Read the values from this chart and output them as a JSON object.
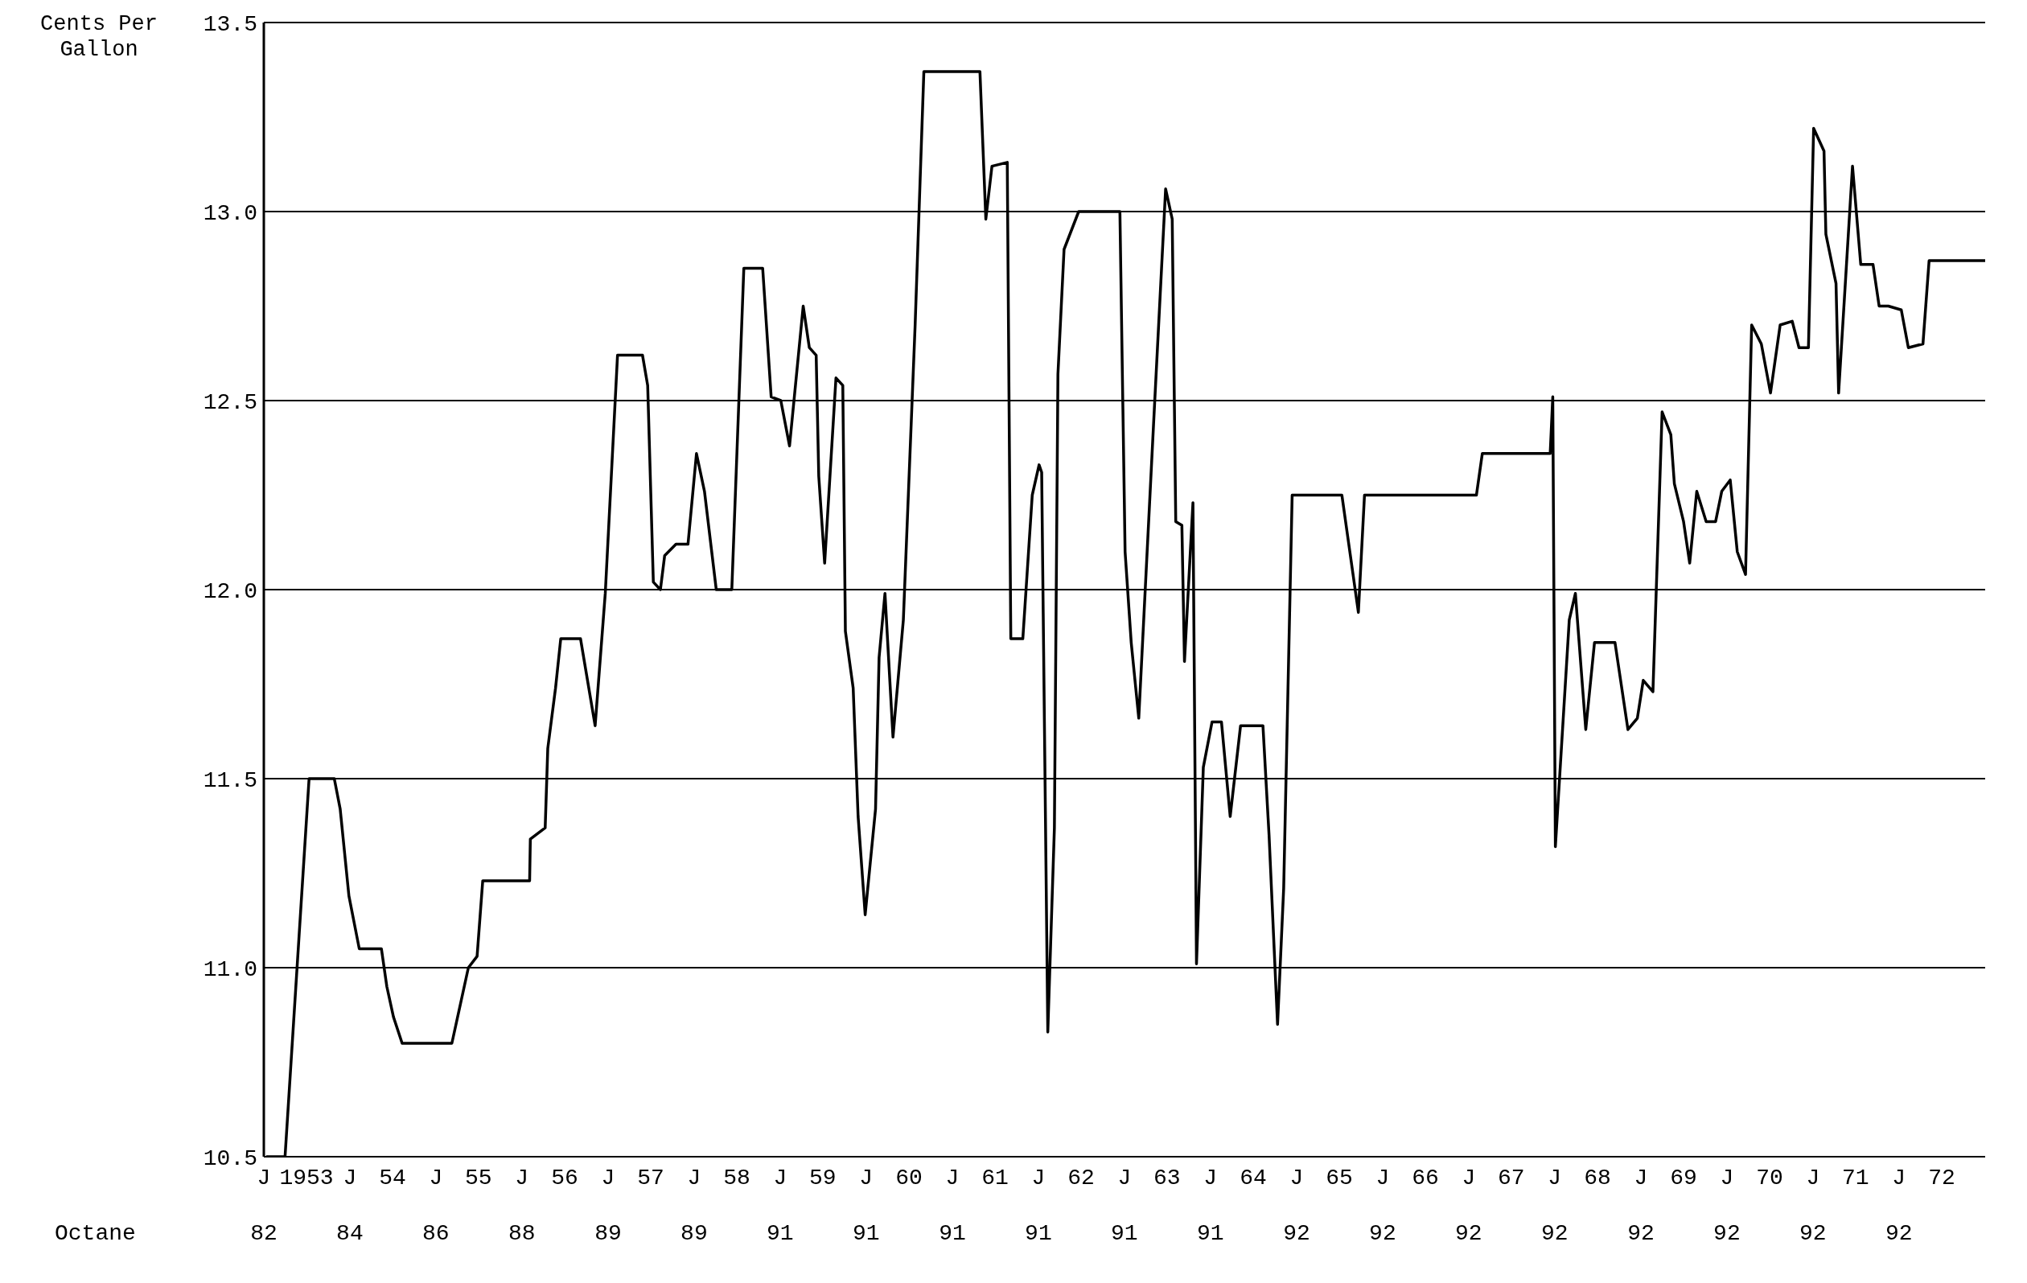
{
  "chart_data": {
    "type": "line",
    "ylabel": "Cents Per Gallon",
    "annotations": [
      "Octane",
      "82",
      "84",
      "86",
      "88",
      "89",
      "89",
      "91",
      "91",
      "91",
      "91",
      "91",
      "91",
      "92",
      "92",
      "92",
      "92",
      "92",
      "92",
      "92",
      "92"
    ],
    "x": [
      "1953-01-11",
      "1953-04-01",
      "1953-07-12",
      "1953-10-27",
      "1953-11-21",
      "1953-12-28",
      "1954-02-10",
      "1954-05-15",
      "1954-06-07",
      "1954-07-05",
      "1954-08-11",
      "1955-03-10",
      "1955-05-19",
      "1955-06-25",
      "1955-07-19",
      "1956-02-03",
      "1956-02-06",
      "1956-04-09",
      "1956-04-20",
      "1956-05-23",
      "1956-06-14",
      "1956-09-06",
      "1956-11-07",
      "1956-12-20",
      "1957-02-10",
      "1957-05-27",
      "1957-06-18",
      "1957-07-12",
      "1957-08-11",
      "1957-08-29",
      "1957-10-16",
      "1957-12-06",
      "1958-01-11",
      "1958-02-14",
      "1958-04-05",
      "1958-06-10",
      "1958-07-31",
      "1958-10-19",
      "1958-11-24",
      "1959-01-04",
      "1959-02-10",
      "1959-04-09",
      "1959-05-05",
      "1959-06-03",
      "1959-06-14",
      "1959-07-09",
      "1959-08-26",
      "1959-09-24",
      "1959-10-05",
      "1959-11-07",
      "1959-11-28",
      "1959-12-28",
      "1960-02-10",
      "1960-02-25",
      "1960-03-21",
      "1960-04-24",
      "1960-06-07",
      "1960-07-27",
      "1960-09-02",
      "1961-04-28",
      "1961-05-23",
      "1961-06-18",
      "1961-08-22",
      "1961-09-06",
      "1961-10-27",
      "1961-12-06",
      "1962-01-04",
      "1962-01-15",
      "1962-02-10",
      "1962-03-10",
      "1962-03-25",
      "1962-04-20",
      "1962-06-21",
      "1962-12-13",
      "1963-01-04",
      "1963-01-30",
      "1963-03-03",
      "1963-05-05",
      "1963-06-25",
      "1963-07-23",
      "1963-08-07",
      "1963-09-02",
      "1963-09-13",
      "1963-10-19",
      "1963-11-03",
      "1963-12-02",
      "1964-01-08",
      "1964-02-17",
      "1964-03-25",
      "1964-05-08",
      "1964-08-11",
      "1964-09-06",
      "1964-10-12",
      "1964-11-07",
      "1964-12-13",
      "1965-07-12",
      "1965-09-20",
      "1965-10-16",
      "1967-02-03",
      "1967-02-28",
      "1967-12-13",
      "1967-12-24",
      "1968-01-04",
      "1968-03-03",
      "1968-03-29",
      "1968-05-12",
      "1968-06-18",
      "1968-09-13",
      "1968-11-07",
      "1968-12-17",
      "1969-01-11",
      "1969-02-21",
      "1969-04-01",
      "1969-05-08",
      "1969-05-23",
      "1969-07-01",
      "1969-07-27",
      "1969-08-26",
      "1969-10-05",
      "1969-11-14",
      "1969-12-10",
      "1970-01-15",
      "1970-02-14",
      "1970-03-21",
      "1970-04-16",
      "1970-05-27",
      "1970-07-05",
      "1970-08-15",
      "1970-10-05",
      "1970-11-03",
      "1970-12-13",
      "1971-01-04",
      "1971-02-17",
      "1971-02-25",
      "1971-04-09",
      "1971-04-20",
      "1971-06-18",
      "1971-07-23",
      "1971-09-13",
      "1971-10-09",
      "1971-11-17",
      "1972-01-11",
      "1972-02-10",
      "1972-04-12",
      "1972-05-08",
      "1973-01-01"
    ],
    "series": [
      {
        "color": "#000000",
        "values": [
          10.5,
          10.5,
          11.5,
          11.5,
          11.42,
          11.19,
          11.05,
          11.05,
          10.95,
          10.87,
          10.8,
          10.8,
          11.0,
          11.03,
          11.23,
          11.23,
          11.34,
          11.37,
          11.58,
          11.74,
          11.87,
          11.87,
          11.64,
          11.99,
          12.62,
          12.62,
          12.54,
          12.02,
          12.0,
          12.09,
          12.12,
          12.12,
          12.36,
          12.26,
          12.0,
          12.0,
          12.85,
          12.85,
          12.51,
          12.5,
          12.38,
          12.75,
          12.64,
          12.62,
          12.3,
          12.07,
          12.56,
          12.54,
          11.89,
          11.74,
          11.4,
          11.14,
          11.42,
          11.82,
          11.99,
          11.61,
          11.92,
          12.7,
          13.37,
          13.37,
          12.98,
          13.12,
          13.13,
          11.87,
          11.87,
          12.25,
          12.33,
          12.31,
          10.83,
          11.37,
          12.57,
          12.9,
          13.0,
          13.0,
          12.1,
          11.86,
          11.66,
          12.44,
          13.06,
          12.98,
          12.18,
          12.17,
          11.81,
          12.23,
          11.01,
          11.53,
          11.65,
          11.65,
          11.4,
          11.64,
          11.64,
          11.35,
          10.85,
          11.21,
          12.25,
          12.25,
          11.94,
          12.25,
          12.25,
          12.36,
          12.36,
          12.51,
          11.32,
          11.92,
          11.99,
          11.63,
          11.86,
          11.86,
          11.63,
          11.66,
          11.76,
          11.73,
          12.47,
          12.41,
          12.28,
          12.18,
          12.07,
          12.26,
          12.18,
          12.18,
          12.26,
          12.29,
          12.1,
          12.04,
          12.7,
          12.65,
          12.52,
          12.7,
          12.71,
          12.64,
          12.64,
          13.22,
          13.16,
          12.94,
          12.81,
          12.52,
          13.12,
          12.86,
          12.86,
          12.75,
          12.75,
          12.74,
          12.64,
          12.65,
          12.87,
          12.87
        ]
      }
    ],
    "xlim": [
      "1953-01",
      "1973-01"
    ],
    "xticks": [
      {
        "value": "1953-01",
        "label": "J"
      },
      {
        "value": "1953-07",
        "label": "1953"
      },
      {
        "value": "1954-01",
        "label": "J"
      },
      {
        "value": "1954-07",
        "label": "54"
      },
      {
        "value": "1955-01",
        "label": "J"
      },
      {
        "value": "1955-07",
        "label": "55"
      },
      {
        "value": "1956-01",
        "label": "J"
      },
      {
        "value": "1956-07",
        "label": "56"
      },
      {
        "value": "1957-01",
        "label": "J"
      },
      {
        "value": "1957-07",
        "label": "57"
      },
      {
        "value": "1958-01",
        "label": "J"
      },
      {
        "value": "1958-07",
        "label": "58"
      },
      {
        "value": "1959-01",
        "label": "J"
      },
      {
        "value": "1959-07",
        "label": "59"
      },
      {
        "value": "1960-01",
        "label": "J"
      },
      {
        "value": "1960-07",
        "label": "60"
      },
      {
        "value": "1961-01",
        "label": "J"
      },
      {
        "value": "1961-07",
        "label": "61"
      },
      {
        "value": "1962-01",
        "label": "J"
      },
      {
        "value": "1962-07",
        "label": "62"
      },
      {
        "value": "1963-01",
        "label": "J"
      },
      {
        "value": "1963-07",
        "label": "63"
      },
      {
        "value": "1964-01",
        "label": "J"
      },
      {
        "value": "1964-07",
        "label": "64"
      },
      {
        "value": "1965-01",
        "label": "J"
      },
      {
        "value": "1965-07",
        "label": "65"
      },
      {
        "value": "1966-01",
        "label": "J"
      },
      {
        "value": "1966-07",
        "label": "66"
      },
      {
        "value": "1967-01",
        "label": "J"
      },
      {
        "value": "1967-07",
        "label": "67"
      },
      {
        "value": "1968-01",
        "label": "J"
      },
      {
        "value": "1968-07",
        "label": "68"
      },
      {
        "value": "1969-01",
        "label": "J"
      },
      {
        "value": "1969-07",
        "label": "69"
      },
      {
        "value": "1970-01",
        "label": "J"
      },
      {
        "value": "1970-07",
        "label": "70"
      },
      {
        "value": "1971-01",
        "label": "J"
      },
      {
        "value": "1971-07",
        "label": "71"
      },
      {
        "value": "1972-01",
        "label": "J"
      },
      {
        "value": "1972-07",
        "label": "72"
      }
    ],
    "ylim": [
      10.5,
      13.5
    ],
    "yticks": [
      {
        "value": 10.5,
        "label": "10.5"
      },
      {
        "value": 11,
        "label": "11.0"
      },
      {
        "value": 11.5,
        "label": "11.5"
      },
      {
        "value": 12,
        "label": "12.0"
      },
      {
        "value": 12.5,
        "label": "12.5"
      },
      {
        "value": 13,
        "label": "13.0"
      },
      {
        "value": 13.5,
        "label": "13.5"
      }
    ],
    "grid": "y",
    "marker": "none",
    "line_style": "solid"
  }
}
